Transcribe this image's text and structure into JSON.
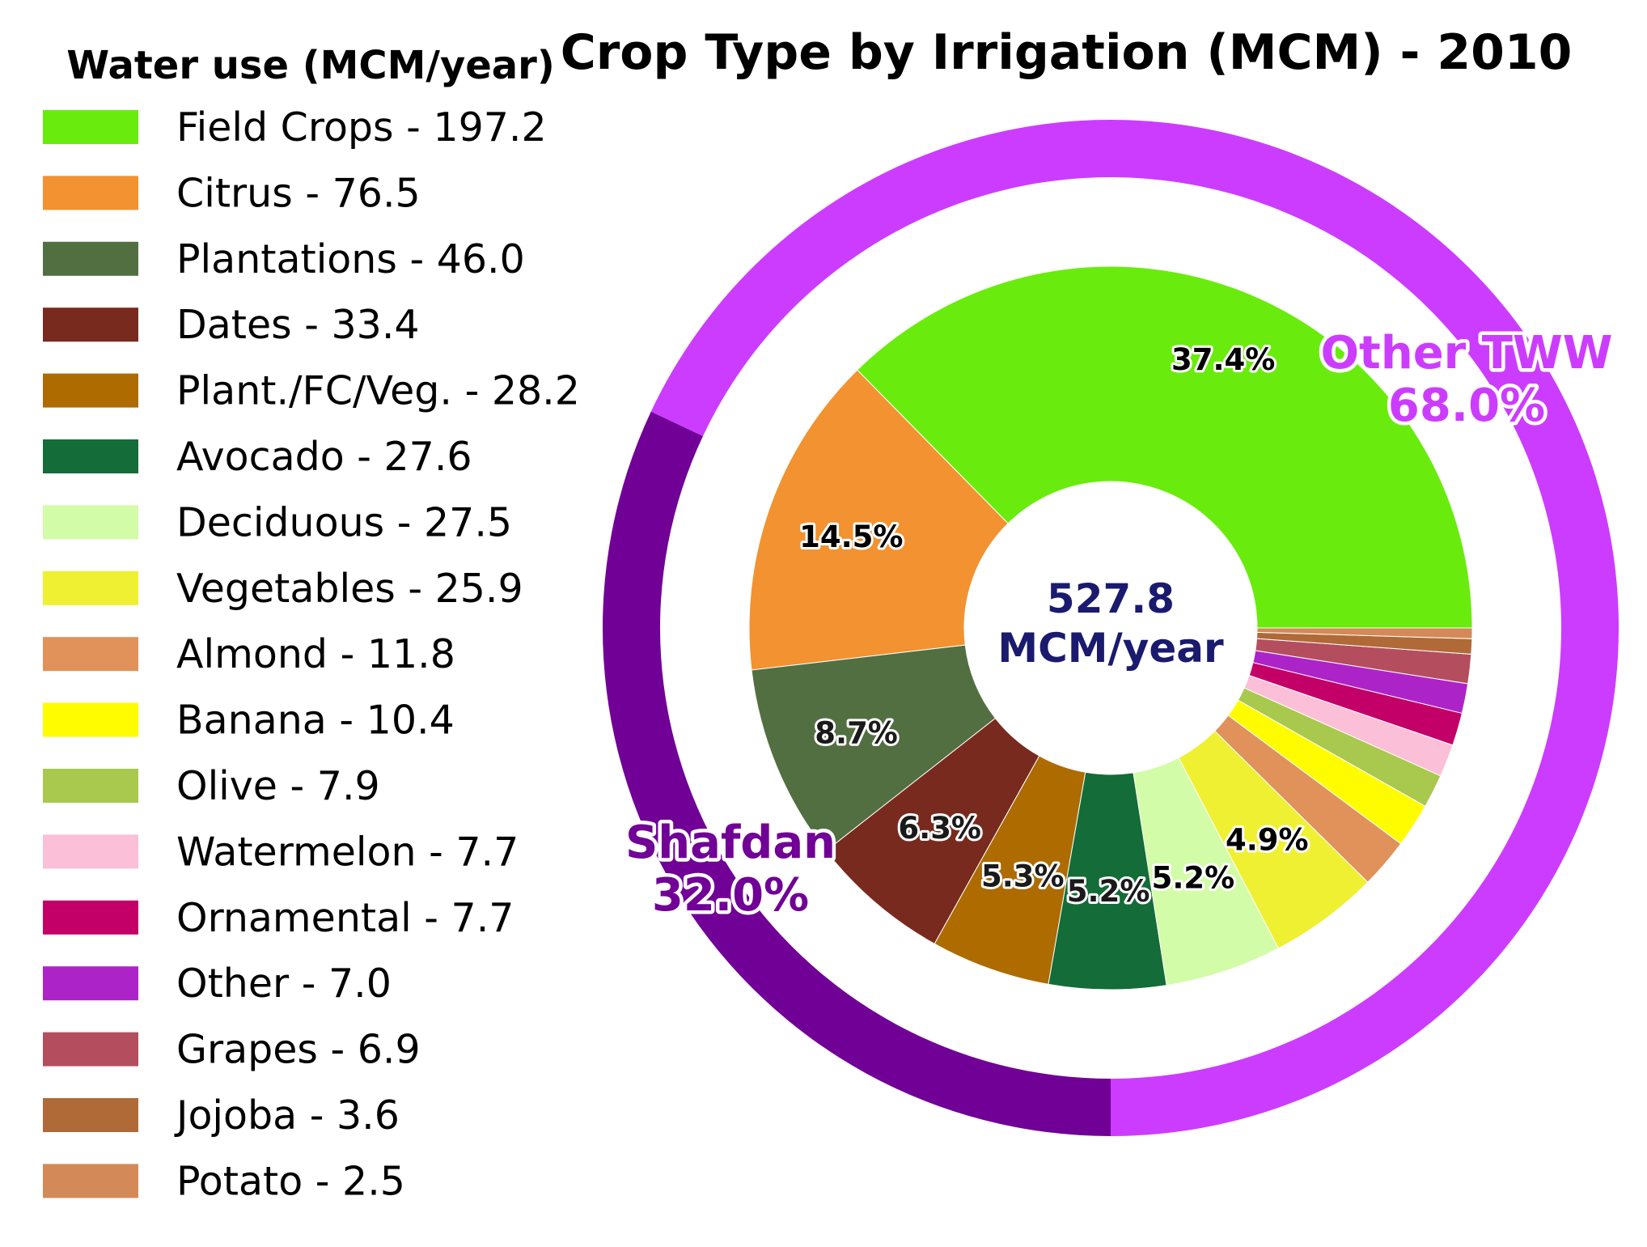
{
  "chart_data": {
    "type": "pie",
    "title": "Crop Type by Irrigation (MCM) - 2010",
    "legend_title": "Water use (MCM/year)",
    "legend_position": "left",
    "center_text": [
      "527.8",
      "MCM/year"
    ],
    "center_text_color": "#1a1a6e",
    "total": 527.8,
    "unit": "MCM/year",
    "inner_ring": {
      "slices": [
        {
          "label": "Field Crops - 197.2",
          "value": 197.2,
          "color": "#69ec0d",
          "pct_label": "37.4%"
        },
        {
          "label": "Citrus - 76.5",
          "value": 76.5,
          "color": "#f29230",
          "pct_label": "14.5%"
        },
        {
          "label": "Plantations - 46.0",
          "value": 46.0,
          "color": "#526f42",
          "pct_label": "8.7%"
        },
        {
          "label": "Dates - 33.4",
          "value": 33.4,
          "color": "#782a1e",
          "pct_label": "6.3%"
        },
        {
          "label": "Plant./FC/Veg. - 28.2",
          "value": 28.2,
          "color": "#ad6b00",
          "pct_label": "5.3%"
        },
        {
          "label": "Avocado - 27.6",
          "value": 27.6,
          "color": "#146c38",
          "pct_label": "5.2%"
        },
        {
          "label": "Deciduous - 27.5",
          "value": 27.5,
          "color": "#d3fca8",
          "pct_label": "5.2%"
        },
        {
          "label": "Vegetables - 25.9",
          "value": 25.9,
          "color": "#eff032",
          "pct_label": "4.9%"
        },
        {
          "label": "Almond - 11.8",
          "value": 11.8,
          "color": "#e0925a",
          "pct_label": ""
        },
        {
          "label": "Banana - 10.4",
          "value": 10.4,
          "color": "#fffc00",
          "pct_label": ""
        },
        {
          "label": "Olive - 7.9",
          "value": 7.9,
          "color": "#a8c84e",
          "pct_label": ""
        },
        {
          "label": "Watermelon - 7.7",
          "value": 7.7,
          "color": "#fbbfd8",
          "pct_label": ""
        },
        {
          "label": "Ornamental - 7.7",
          "value": 7.7,
          "color": "#c30068",
          "pct_label": ""
        },
        {
          "label": "Other - 7.0",
          "value": 7.0,
          "color": "#ac24c8",
          "pct_label": ""
        },
        {
          "label": "Grapes - 6.9",
          "value": 6.9,
          "color": "#b44e5e",
          "pct_label": ""
        },
        {
          "label": "Jojoba - 3.6",
          "value": 3.6,
          "color": "#b06a38",
          "pct_label": ""
        },
        {
          "label": "Potato - 2.5",
          "value": 2.5,
          "color": "#d38a58",
          "pct_label": ""
        }
      ]
    },
    "outer_ring": {
      "slices": [
        {
          "name": "Other TWW",
          "value": 68.0,
          "pct_label": "68.0%",
          "color": "#cc3cff"
        },
        {
          "name": "Shafdan",
          "value": 32.0,
          "pct_label": "32.0%",
          "color": "#710096"
        }
      ]
    }
  }
}
